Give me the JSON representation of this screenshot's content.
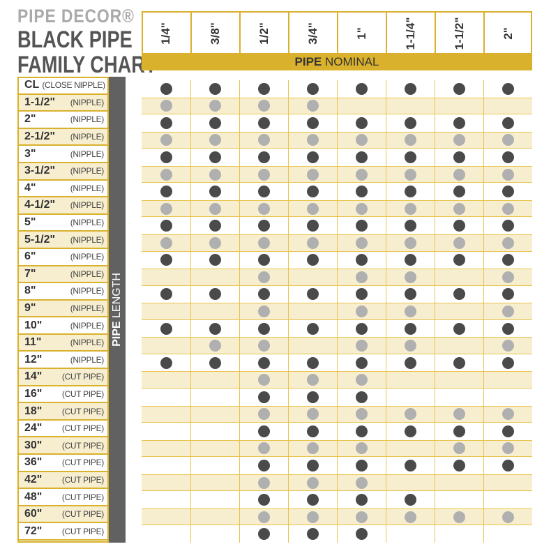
{
  "brand": "PIPE DECOR®",
  "title_line1": "BLACK PIPE",
  "title_line2": "FAMILY CHART",
  "chart_data": {
    "type": "table",
    "x_axis_label_bold": "PIPE",
    "x_axis_label": "NOMINAL",
    "y_axis_label_bold": "PIPE",
    "y_axis_label": "LENGTH",
    "columns": [
      "1/4\"",
      "3/8\"",
      "1/2\"",
      "3/4\"",
      "1\"",
      "1-1/4\"",
      "1-1/2\"",
      "2\""
    ],
    "rows": [
      {
        "size": "CL",
        "type": "(CLOSE NIPPLE)",
        "avail": [
          1,
          1,
          1,
          1,
          1,
          1,
          1,
          1
        ]
      },
      {
        "size": "1-1/2\"",
        "type": "(NIPPLE)",
        "avail": [
          1,
          1,
          1,
          1,
          0,
          0,
          0,
          0
        ]
      },
      {
        "size": "2\"",
        "type": "(NIPPLE)",
        "avail": [
          1,
          1,
          1,
          1,
          1,
          1,
          1,
          1
        ]
      },
      {
        "size": "2-1/2\"",
        "type": "(NIPPLE)",
        "avail": [
          1,
          1,
          1,
          1,
          1,
          1,
          1,
          1
        ]
      },
      {
        "size": "3\"",
        "type": "(NIPPLE)",
        "avail": [
          1,
          1,
          1,
          1,
          1,
          1,
          1,
          1
        ]
      },
      {
        "size": "3-1/2\"",
        "type": "(NIPPLE)",
        "avail": [
          1,
          1,
          1,
          1,
          1,
          1,
          1,
          1
        ]
      },
      {
        "size": "4\"",
        "type": "(NIPPLE)",
        "avail": [
          1,
          1,
          1,
          1,
          1,
          1,
          1,
          1
        ]
      },
      {
        "size": "4-1/2\"",
        "type": "(NIPPLE)",
        "avail": [
          1,
          1,
          1,
          1,
          1,
          1,
          1,
          1
        ]
      },
      {
        "size": "5\"",
        "type": "(NIPPLE)",
        "avail": [
          1,
          1,
          1,
          1,
          1,
          1,
          1,
          1
        ]
      },
      {
        "size": "5-1/2\"",
        "type": "(NIPPLE)",
        "avail": [
          1,
          1,
          1,
          1,
          1,
          1,
          1,
          1
        ]
      },
      {
        "size": "6\"",
        "type": "(NIPPLE)",
        "avail": [
          1,
          1,
          1,
          1,
          1,
          1,
          1,
          1
        ]
      },
      {
        "size": "7\"",
        "type": "(NIPPLE)",
        "avail": [
          0,
          0,
          1,
          0,
          1,
          1,
          0,
          1
        ]
      },
      {
        "size": "8\"",
        "type": "(NIPPLE)",
        "avail": [
          1,
          1,
          1,
          1,
          1,
          1,
          1,
          1
        ]
      },
      {
        "size": "9\"",
        "type": "(NIPPLE)",
        "avail": [
          0,
          0,
          1,
          0,
          1,
          1,
          0,
          1
        ]
      },
      {
        "size": "10\"",
        "type": "(NIPPLE)",
        "avail": [
          1,
          1,
          1,
          1,
          1,
          1,
          1,
          1
        ]
      },
      {
        "size": "11\"",
        "type": "(NIPPLE)",
        "avail": [
          0,
          1,
          1,
          0,
          1,
          1,
          0,
          1
        ]
      },
      {
        "size": "12\"",
        "type": "(NIPPLE)",
        "avail": [
          1,
          1,
          1,
          1,
          1,
          1,
          1,
          1
        ]
      },
      {
        "size": "14\"",
        "type": "(CUT PIPE)",
        "avail": [
          0,
          0,
          1,
          1,
          1,
          0,
          0,
          0
        ]
      },
      {
        "size": "16\"",
        "type": "(CUT PIPE)",
        "avail": [
          0,
          0,
          1,
          1,
          1,
          0,
          0,
          0
        ]
      },
      {
        "size": "18\"",
        "type": "(CUT PIPE)",
        "avail": [
          0,
          0,
          1,
          1,
          1,
          1,
          1,
          1
        ]
      },
      {
        "size": "24\"",
        "type": "(CUT PIPE)",
        "avail": [
          0,
          0,
          1,
          1,
          1,
          1,
          1,
          1
        ]
      },
      {
        "size": "30\"",
        "type": "(CUT PIPE)",
        "avail": [
          0,
          0,
          1,
          1,
          1,
          0,
          1,
          1
        ]
      },
      {
        "size": "36\"",
        "type": "(CUT PIPE)",
        "avail": [
          0,
          0,
          1,
          1,
          1,
          1,
          1,
          1
        ]
      },
      {
        "size": "42\"",
        "type": "(CUT PIPE)",
        "avail": [
          0,
          0,
          1,
          1,
          1,
          0,
          0,
          0
        ]
      },
      {
        "size": "48\"",
        "type": "(CUT PIPE)",
        "avail": [
          0,
          0,
          1,
          1,
          1,
          1,
          0,
          0
        ]
      },
      {
        "size": "60\"",
        "type": "(CUT PIPE)",
        "avail": [
          0,
          0,
          1,
          1,
          1,
          1,
          1,
          1
        ]
      },
      {
        "size": "72\"",
        "type": "(CUT PIPE)",
        "avail": [
          0,
          0,
          1,
          1,
          1,
          0,
          0,
          0
        ]
      }
    ]
  },
  "colors": {
    "gold": "#d9b12c",
    "stripe": "#f7eecf",
    "dot_dark": "#4a4a4a",
    "dot_light": "#b0b0b0",
    "bar": "#616161"
  }
}
